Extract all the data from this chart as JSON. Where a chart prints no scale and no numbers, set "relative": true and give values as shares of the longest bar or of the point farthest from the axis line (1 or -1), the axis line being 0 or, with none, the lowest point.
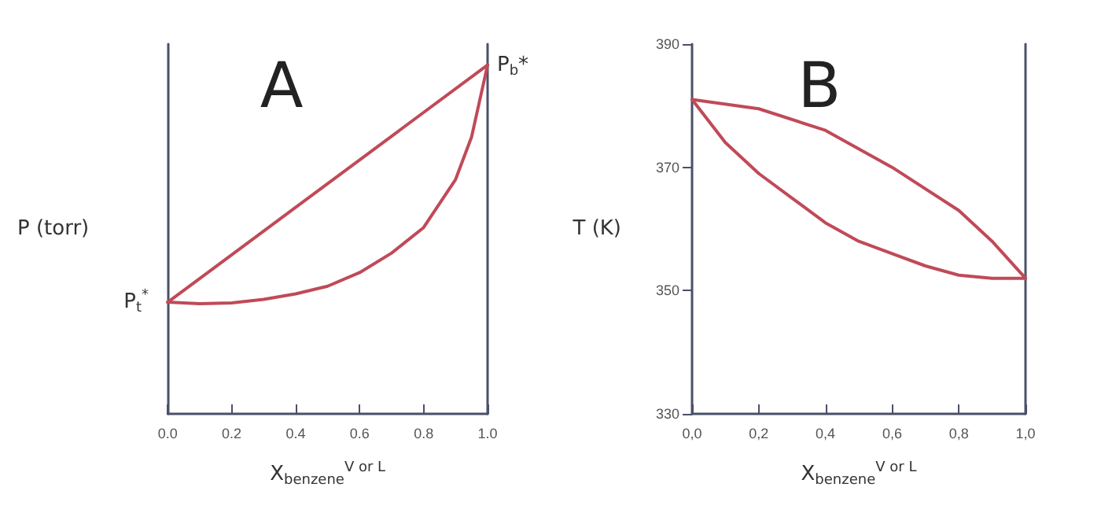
{
  "chart_data": [
    {
      "type": "line",
      "title": "A",
      "xlabel": "X$_{benzene}$$^{V or L}$",
      "ylabel": "P (torr)",
      "relative": true,
      "tick_labels": "x",
      "marker": "none",
      "xlim": [
        0,
        1
      ],
      "xticks": [
        {
          "value": 0,
          "label": "0.0"
        },
        {
          "value": 0.2,
          "label": "0.2"
        },
        {
          "value": 0.4,
          "label": "0.4"
        },
        {
          "value": 0.6,
          "label": "0.6"
        },
        {
          "value": 0.8,
          "label": "0.8"
        },
        {
          "value": 1,
          "label": "1.0"
        }
      ],
      "series": [
        {
          "color": "#c04a58",
          "x": [
            0,
            1
          ],
          "values": [
            0.32,
            1
          ]
        },
        {
          "color": "#c04a58",
          "x": [
            0,
            0.1,
            0.2,
            0.3,
            0.4,
            0.5,
            0.6,
            0.7,
            0.8,
            0.9,
            0.95,
            1
          ],
          "values": [
            0.32,
            0.316,
            0.318,
            0.328,
            0.344,
            0.366,
            0.405,
            0.461,
            0.534,
            0.672,
            0.794,
            1
          ]
        }
      ],
      "annotations": [
        {
          "text": "P$_{t}$$^{*}$",
          "x": 0,
          "y": 0.32
        },
        {
          "text": "P$_{b}$*",
          "x": 1,
          "y": 1
        }
      ]
    },
    {
      "type": "line",
      "title": "B",
      "xlabel": "X$_{benzene}$$^{V or L}$",
      "ylabel": "T (K)",
      "marker": "none",
      "xlim": [
        0,
        1
      ],
      "ylim": [
        330,
        390
      ],
      "yticks": [
        330,
        350,
        370,
        390
      ],
      "xticks": [
        {
          "value": 0,
          "label": "0,0"
        },
        {
          "value": 0.2,
          "label": "0,2"
        },
        {
          "value": 0.4,
          "label": "0,4"
        },
        {
          "value": 0.6,
          "label": "0,6"
        },
        {
          "value": 0.8,
          "label": "0,8"
        },
        {
          "value": 1,
          "label": "1,0"
        }
      ],
      "series": [
        {
          "color": "#c04a58",
          "x": [
            0,
            0.2,
            0.4,
            0.6,
            0.8,
            0.9,
            1
          ],
          "values": [
            381,
            379.5,
            376,
            370,
            363,
            358,
            352
          ]
        },
        {
          "color": "#c04a58",
          "x": [
            0,
            0.1,
            0.2,
            0.3,
            0.4,
            0.5,
            0.6,
            0.7,
            0.8,
            0.9,
            1
          ],
          "values": [
            381,
            374,
            369,
            365,
            361,
            358,
            356,
            354,
            352.5,
            352,
            352
          ]
        }
      ]
    }
  ]
}
